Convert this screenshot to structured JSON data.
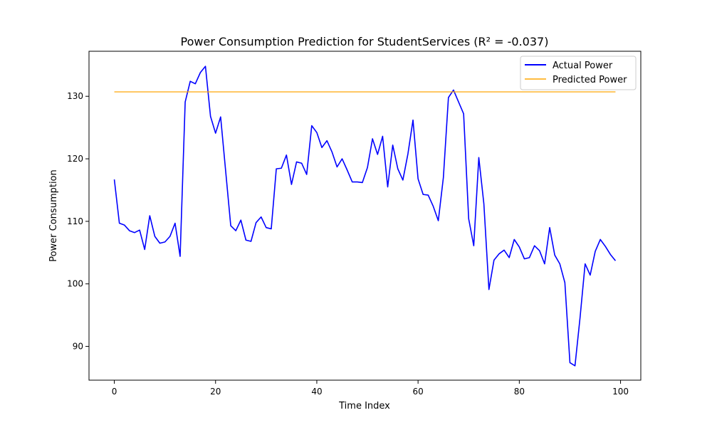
{
  "chart_data": {
    "type": "line",
    "title": "Power Consumption Prediction for StudentServices (R² = -0.037)",
    "xlabel": "Time Index",
    "ylabel": "Power Consumption",
    "xlim": [
      -5,
      104
    ],
    "ylim": [
      84.6,
      137.2
    ],
    "xticks": [
      0,
      20,
      40,
      60,
      80,
      100
    ],
    "yticks": [
      90,
      100,
      110,
      120,
      130
    ],
    "grid": false,
    "legend_position": "top-right",
    "series": [
      {
        "name": "Actual Power",
        "color": "#0000ff",
        "x": [
          0,
          1,
          2,
          3,
          4,
          5,
          6,
          7,
          8,
          9,
          10,
          11,
          12,
          13,
          14,
          15,
          16,
          17,
          18,
          19,
          20,
          21,
          22,
          23,
          24,
          25,
          26,
          27,
          28,
          29,
          30,
          31,
          32,
          33,
          34,
          35,
          36,
          37,
          38,
          39,
          40,
          41,
          42,
          43,
          44,
          45,
          46,
          47,
          48,
          49,
          50,
          51,
          52,
          53,
          54,
          55,
          56,
          57,
          58,
          59,
          60,
          61,
          62,
          63,
          64,
          65,
          66,
          67,
          68,
          69,
          70,
          71,
          72,
          73,
          74,
          75,
          76,
          77,
          78,
          79,
          80,
          81,
          82,
          83,
          84,
          85,
          86,
          87,
          88,
          89,
          90,
          91,
          92,
          93,
          94,
          95,
          96,
          97,
          98,
          99
        ],
        "values": [
          116.7,
          109.7,
          109.4,
          108.5,
          108.2,
          108.6,
          105.5,
          110.9,
          107.6,
          106.5,
          106.7,
          107.6,
          109.7,
          104.4,
          129.1,
          132.4,
          132.0,
          133.8,
          134.8,
          126.8,
          124.1,
          126.7,
          118.0,
          109.3,
          108.5,
          110.2,
          107.0,
          106.8,
          109.8,
          110.7,
          109.0,
          108.8,
          118.4,
          118.5,
          120.6,
          115.9,
          119.5,
          119.3,
          117.5,
          125.3,
          124.2,
          121.8,
          122.9,
          121.1,
          118.7,
          120.0,
          118.2,
          116.3,
          116.3,
          116.2,
          118.6,
          123.2,
          120.7,
          123.6,
          115.5,
          122.2,
          118.4,
          116.6,
          120.8,
          126.2,
          116.8,
          114.3,
          114.2,
          112.4,
          110.1,
          117.0,
          129.8,
          131.0,
          129.1,
          127.2,
          110.4,
          106.1,
          120.2,
          112.8,
          99.1,
          103.8,
          104.8,
          105.4,
          104.2,
          107.1,
          105.9,
          104.0,
          104.2,
          106.1,
          105.3,
          103.2,
          109.0,
          104.6,
          103.2,
          100.2,
          87.4,
          86.9,
          94.6,
          103.2,
          101.4,
          105.2,
          107.1,
          106.0,
          104.7,
          103.7
        ]
      },
      {
        "name": "Predicted Power",
        "color": "#ffa500",
        "x": [
          0,
          99
        ],
        "values": [
          130.7,
          130.7
        ]
      }
    ]
  }
}
